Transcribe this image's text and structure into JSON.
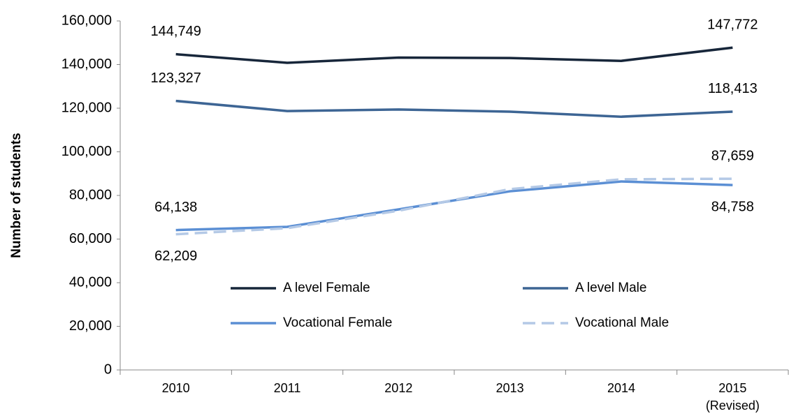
{
  "chart_data": {
    "type": "line",
    "y_label": "Number of students",
    "categories": [
      "2010",
      "2011",
      "2012",
      "2013",
      "2014",
      "2015\n(Revised)"
    ],
    "series": [
      {
        "name": "A level Female",
        "color": "#17263a",
        "values": [
          144749,
          140800,
          143200,
          143000,
          141700,
          147772
        ],
        "value_labels": [
          "144,749",
          null,
          null,
          null,
          null,
          "147,772"
        ]
      },
      {
        "name": "A level Male",
        "color": "#3d6594",
        "values": [
          123327,
          118700,
          119400,
          118400,
          116100,
          118413
        ],
        "value_labels": [
          "123,327",
          null,
          null,
          null,
          null,
          "118,413"
        ]
      },
      {
        "name": "Vocational Female",
        "color": "#5b8fd4",
        "values": [
          64138,
          65600,
          73600,
          81900,
          86400,
          84758
        ],
        "value_labels": [
          "64,138",
          null,
          null,
          null,
          null,
          "84,758"
        ]
      },
      {
        "name": "Vocational Male",
        "color": "#b4c9e6",
        "dashed": true,
        "values": [
          62209,
          65000,
          73000,
          82900,
          87400,
          87659
        ],
        "value_labels": [
          "62,209",
          null,
          null,
          null,
          null,
          "87,659"
        ]
      }
    ],
    "ylim": [
      0,
      160000
    ],
    "yticks": [
      0,
      {
        "value": 20000,
        "label": "20,000"
      },
      {
        "value": 40000,
        "label": "40,000"
      },
      {
        "value": 60000,
        "label": "60,000"
      },
      {
        "value": 80000,
        "label": "80,000"
      },
      {
        "value": 100000,
        "label": "100,000"
      },
      {
        "value": 120000,
        "label": "120,000"
      },
      {
        "value": 140000,
        "label": "140,000"
      },
      {
        "value": 160000,
        "label": "160,000"
      }
    ],
    "grid": false
  }
}
